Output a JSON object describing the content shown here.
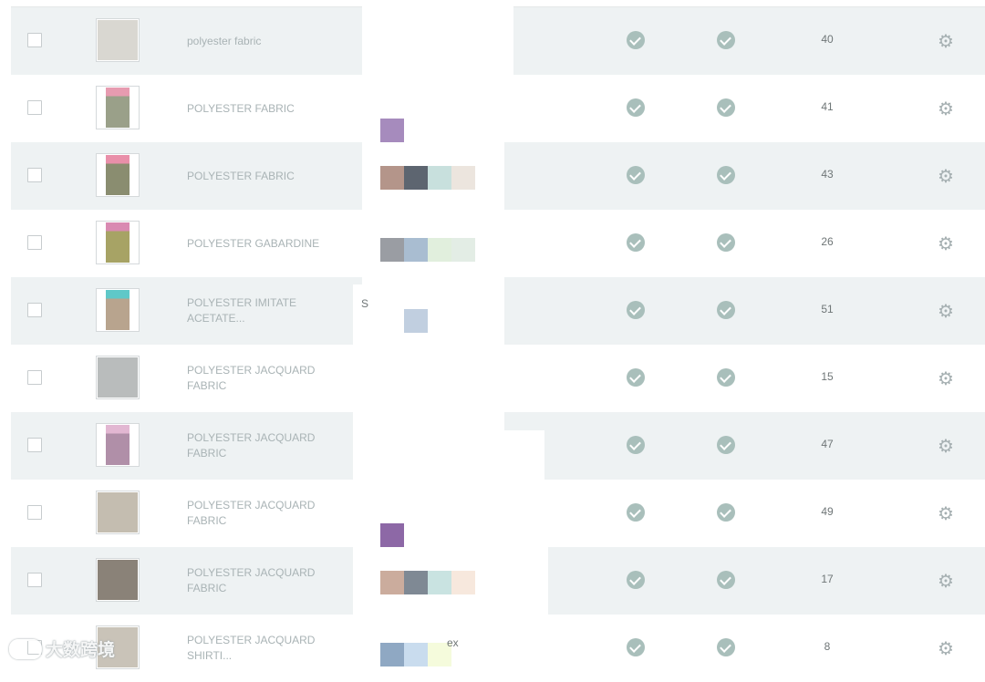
{
  "colors": {
    "row_alt_bg": "#eef2f3",
    "status_icon": "#a9bfbb",
    "gear_icon": "#a6b0b2",
    "text_muted": "#a9b3b5"
  },
  "rows": [
    {
      "name_lines": [
        "polyester fabric"
      ],
      "count": "40",
      "thumb": [
        "#d9d7d1"
      ]
    },
    {
      "name_lines": [
        "POLYESTER FABRIC"
      ],
      "count": "41",
      "thumb": [
        "#9aa089",
        "#e79bb0"
      ]
    },
    {
      "name_lines": [
        "POLYESTER FABRIC"
      ],
      "count": "43",
      "thumb": [
        "#8a8d70",
        "#e98fa9"
      ]
    },
    {
      "name_lines": [
        "POLYESTER GABARDINE"
      ],
      "count": "26",
      "thumb": [
        "#a7a365",
        "#d98ab2"
      ]
    },
    {
      "name_lines": [
        "POLYESTER IMITATE",
        "ACETATE..."
      ],
      "count": "51",
      "thumb": [
        "#b8a48e",
        "#5fc8c8"
      ]
    },
    {
      "name_lines": [
        "POLYESTER JACQUARD",
        "FABRIC"
      ],
      "count": "15",
      "thumb": [
        "#b9bcbc"
      ]
    },
    {
      "name_lines": [
        "POLYESTER JACQUARD",
        "FABRIC"
      ],
      "count": "47",
      "thumb": [
        "#b08fa8",
        "#e2b7d2"
      ]
    },
    {
      "name_lines": [
        "POLYESTER JACQUARD",
        "FABRIC"
      ],
      "count": "49",
      "thumb": [
        "#c4bdb0"
      ]
    },
    {
      "name_lines": [
        "POLYESTER JACQUARD",
        "FABRIC"
      ],
      "count": "17",
      "thumb": [
        "#8a8278"
      ]
    },
    {
      "name_lines": [
        "POLYESTER JACQUARD",
        "SHIRTI..."
      ],
      "count": "8",
      "thumb": [
        "#c9c3b8"
      ]
    }
  ],
  "swatch_groups": [
    [
      "#a68bbd"
    ],
    [
      "#b4958a",
      "#5d6570",
      "#c8e0dd",
      "#ece5de"
    ],
    [
      "#9a9da3",
      "#a9bdd1",
      "#e1efdd",
      "#e3ede5"
    ],
    [
      "#c1cfe0"
    ],
    [
      "#8d68a6"
    ],
    [
      "#cbac9d",
      "#7f8994",
      "#c9e3e1",
      "#f7e8dd"
    ],
    [
      "#8fa8c3",
      "#c9dcee",
      "#f5fbdc"
    ]
  ],
  "fragments": [
    "S",
    "ex"
  ],
  "watermark": {
    "text": "大数跨境"
  }
}
